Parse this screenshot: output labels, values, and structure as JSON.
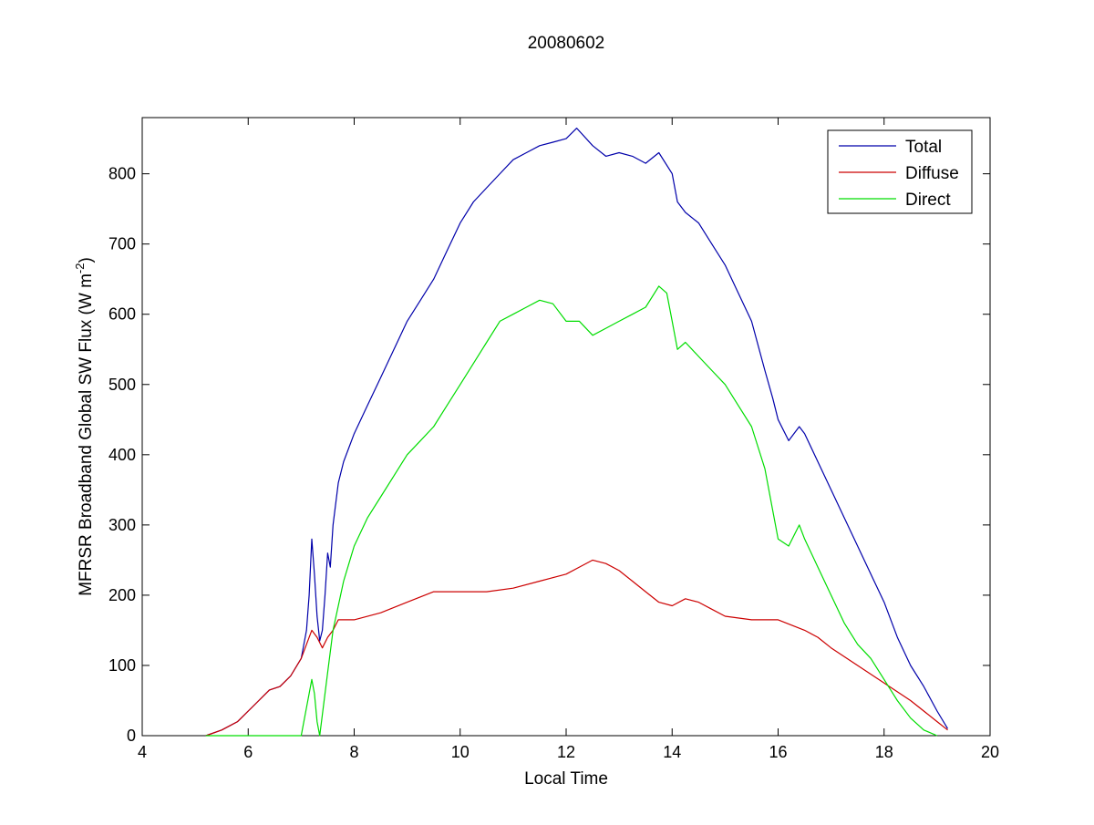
{
  "chart_data": {
    "type": "line",
    "title": "20080602",
    "xlabel": "Local Time",
    "ylabel_main": "MFRSR Broadband Global SW Flux (W m",
    "ylabel_sup": "-2",
    "ylabel_end": ")",
    "xlim": [
      4,
      20
    ],
    "ylim": [
      0,
      880
    ],
    "xticks": [
      4,
      6,
      8,
      10,
      12,
      14,
      16,
      18,
      20
    ],
    "yticks": [
      0,
      100,
      200,
      300,
      400,
      500,
      600,
      700,
      800
    ],
    "grid": false,
    "legend_position": "top-right",
    "series": [
      {
        "name": "Total",
        "color": "#0000aa",
        "x": [
          5.2,
          5.5,
          5.8,
          6.0,
          6.2,
          6.4,
          6.6,
          6.8,
          7.0,
          7.1,
          7.15,
          7.2,
          7.25,
          7.3,
          7.35,
          7.4,
          7.45,
          7.5,
          7.55,
          7.6,
          7.7,
          7.8,
          8.0,
          8.25,
          8.5,
          8.75,
          9.0,
          9.25,
          9.5,
          9.75,
          10.0,
          10.25,
          10.5,
          10.75,
          11.0,
          11.25,
          11.5,
          11.75,
          12.0,
          12.2,
          12.5,
          12.75,
          13.0,
          13.25,
          13.5,
          13.75,
          14.0,
          14.1,
          14.25,
          14.5,
          14.75,
          15.0,
          15.25,
          15.5,
          15.75,
          15.9,
          16.0,
          16.2,
          16.4,
          16.5,
          16.75,
          17.0,
          17.25,
          17.5,
          17.75,
          18.0,
          18.25,
          18.5,
          18.75,
          19.0,
          19.2
        ],
        "y": [
          0,
          8,
          20,
          35,
          50,
          65,
          70,
          85,
          110,
          150,
          200,
          280,
          230,
          170,
          135,
          150,
          200,
          260,
          240,
          300,
          360,
          390,
          430,
          470,
          510,
          550,
          590,
          620,
          650,
          690,
          730,
          760,
          780,
          800,
          820,
          830,
          840,
          845,
          850,
          865,
          840,
          825,
          830,
          825,
          815,
          830,
          800,
          760,
          745,
          730,
          700,
          670,
          630,
          590,
          520,
          480,
          450,
          420,
          440,
          430,
          390,
          350,
          310,
          270,
          230,
          190,
          140,
          100,
          70,
          35,
          10
        ]
      },
      {
        "name": "Diffuse",
        "color": "#cc0000",
        "x": [
          5.2,
          5.5,
          5.8,
          6.0,
          6.2,
          6.4,
          6.6,
          6.8,
          7.0,
          7.1,
          7.2,
          7.3,
          7.4,
          7.5,
          7.6,
          7.7,
          8.0,
          8.5,
          9.0,
          9.5,
          10.0,
          10.5,
          11.0,
          11.5,
          12.0,
          12.25,
          12.5,
          12.75,
          13.0,
          13.25,
          13.5,
          13.75,
          14.0,
          14.25,
          14.5,
          14.75,
          15.0,
          15.5,
          16.0,
          16.5,
          16.75,
          17.0,
          17.5,
          18.0,
          18.5,
          19.0,
          19.2
        ],
        "y": [
          0,
          8,
          20,
          35,
          50,
          65,
          70,
          85,
          110,
          130,
          150,
          140,
          125,
          140,
          150,
          165,
          165,
          175,
          190,
          205,
          205,
          205,
          210,
          220,
          230,
          240,
          250,
          245,
          235,
          220,
          205,
          190,
          185,
          195,
          190,
          180,
          170,
          165,
          165,
          150,
          140,
          125,
          100,
          75,
          50,
          20,
          8
        ]
      },
      {
        "name": "Direct",
        "color": "#00dd00",
        "x": [
          5.2,
          6.0,
          6.5,
          7.0,
          7.1,
          7.2,
          7.25,
          7.3,
          7.35,
          7.4,
          7.5,
          7.6,
          7.8,
          8.0,
          8.25,
          8.5,
          8.75,
          9.0,
          9.25,
          9.5,
          9.75,
          10.0,
          10.25,
          10.5,
          10.75,
          11.0,
          11.25,
          11.5,
          11.75,
          12.0,
          12.25,
          12.5,
          12.75,
          13.0,
          13.25,
          13.5,
          13.75,
          13.9,
          14.0,
          14.1,
          14.25,
          14.5,
          14.75,
          15.0,
          15.25,
          15.5,
          15.75,
          15.9,
          16.0,
          16.2,
          16.4,
          16.5,
          16.75,
          17.0,
          17.25,
          17.5,
          17.75,
          18.0,
          18.25,
          18.5,
          18.75,
          19.0
        ],
        "y": [
          0,
          0,
          0,
          0,
          40,
          80,
          60,
          20,
          0,
          30,
          90,
          150,
          220,
          270,
          310,
          340,
          370,
          400,
          420,
          440,
          470,
          500,
          530,
          560,
          590,
          600,
          610,
          620,
          615,
          590,
          590,
          570,
          580,
          590,
          600,
          610,
          640,
          630,
          590,
          550,
          560,
          540,
          520,
          500,
          470,
          440,
          380,
          320,
          280,
          270,
          300,
          280,
          240,
          200,
          160,
          130,
          110,
          80,
          50,
          25,
          8,
          0
        ]
      }
    ]
  }
}
